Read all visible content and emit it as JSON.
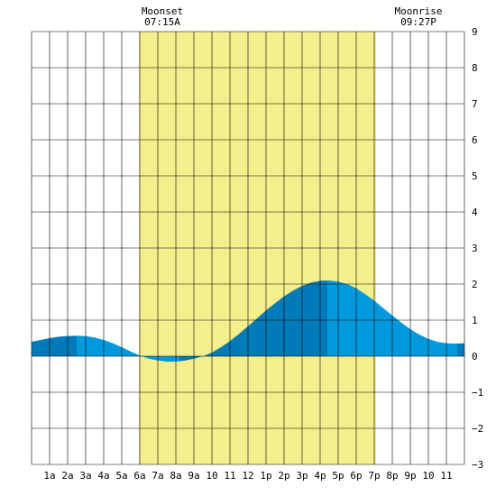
{
  "chart_data": {
    "type": "area",
    "title": "",
    "xlabel": "",
    "ylabel": "",
    "x_range_hours": [
      0,
      24
    ],
    "ylim": [
      -3,
      9
    ],
    "y_ticks": [
      9,
      8,
      7,
      6,
      5,
      4,
      3,
      2,
      1,
      0,
      -1,
      -2,
      -3
    ],
    "x_ticks": [
      {
        "hour": 1,
        "label": "1a"
      },
      {
        "hour": 2,
        "label": "2a"
      },
      {
        "hour": 3,
        "label": "3a"
      },
      {
        "hour": 4,
        "label": "4a"
      },
      {
        "hour": 5,
        "label": "5a"
      },
      {
        "hour": 6,
        "label": "6a"
      },
      {
        "hour": 7,
        "label": "7a"
      },
      {
        "hour": 8,
        "label": "8a"
      },
      {
        "hour": 9,
        "label": "9a"
      },
      {
        "hour": 10,
        "label": "10"
      },
      {
        "hour": 11,
        "label": "11"
      },
      {
        "hour": 12,
        "label": "12"
      },
      {
        "hour": 13,
        "label": "1p"
      },
      {
        "hour": 14,
        "label": "2p"
      },
      {
        "hour": 15,
        "label": "3p"
      },
      {
        "hour": 16,
        "label": "4p"
      },
      {
        "hour": 17,
        "label": "5p"
      },
      {
        "hour": 18,
        "label": "6p"
      },
      {
        "hour": 19,
        "label": "7p"
      },
      {
        "hour": 20,
        "label": "8p"
      },
      {
        "hour": 21,
        "label": "9p"
      },
      {
        "hour": 22,
        "label": "10"
      },
      {
        "hour": 23,
        "label": "11"
      }
    ],
    "daylight": {
      "start_hour": 5.95,
      "end_hour": 19.1
    },
    "moon_events": [
      {
        "name": "Moonset",
        "time": "07:15A",
        "hour": 7.25
      },
      {
        "name": "Moonrise",
        "time": "09:27P",
        "hour": 21.45
      }
    ],
    "tide_extremes": [
      {
        "hour": 2.5,
        "height": 0.57,
        "kind": "high"
      },
      {
        "hour": 8.2,
        "height": -0.15,
        "kind": "low"
      },
      {
        "hour": 16.4,
        "height": 2.1,
        "kind": "high"
      },
      {
        "hour": 23.6,
        "height": 0.35,
        "kind": "low"
      }
    ],
    "series": [
      {
        "x": [
          0,
          0.5,
          1,
          1.5,
          2,
          2.5,
          3,
          3.5,
          4,
          4.5,
          5,
          5.5,
          6,
          6.5,
          7,
          7.5,
          8,
          8.5,
          9,
          9.5,
          10,
          10.5,
          11,
          11.5,
          12,
          12.5,
          13,
          13.5,
          14,
          14.5,
          15,
          15.5,
          16,
          16.5,
          17,
          17.5,
          18,
          18.5,
          19,
          19.5,
          20,
          20.5,
          21,
          21.5,
          22,
          22.5,
          23,
          23.5,
          24
        ],
        "values": [
          0.4,
          0.45,
          0.5,
          0.54,
          0.56,
          0.57,
          0.56,
          0.52,
          0.45,
          0.36,
          0.25,
          0.13,
          0.02,
          -0.07,
          -0.12,
          -0.15,
          -0.15,
          -0.12,
          -0.07,
          0.0,
          0.1,
          0.25,
          0.42,
          0.62,
          0.83,
          1.05,
          1.27,
          1.47,
          1.66,
          1.82,
          1.95,
          2.04,
          2.09,
          2.1,
          2.07,
          2.0,
          1.88,
          1.72,
          1.54,
          1.33,
          1.13,
          0.93,
          0.75,
          0.6,
          0.48,
          0.4,
          0.36,
          0.35,
          0.36
        ]
      }
    ],
    "colors": {
      "water": "#0099dd",
      "water_dark": "#007ab8",
      "daylight": "#f5ee8c",
      "grid": "#000000",
      "background": "#ffffff"
    }
  }
}
